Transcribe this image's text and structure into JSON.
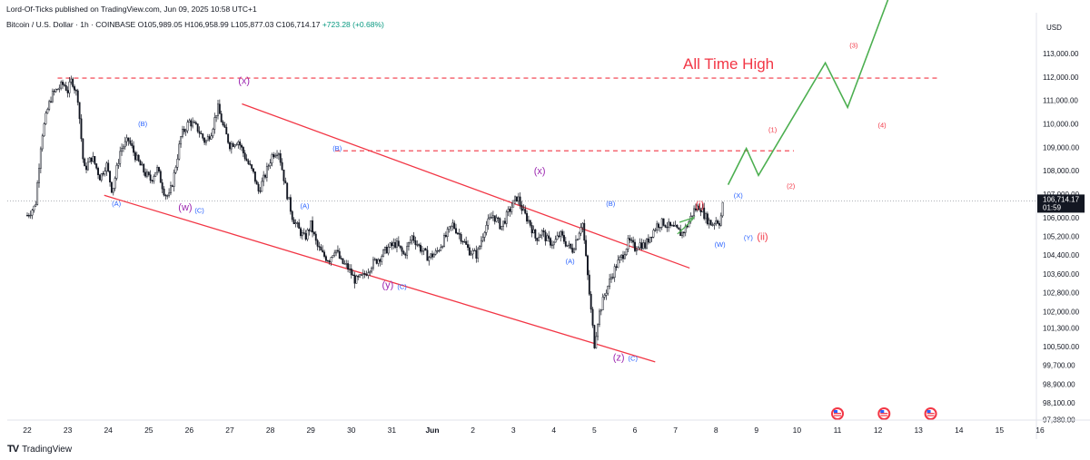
{
  "header": {
    "published": "Lord-Of-Ticks published on TradingView.com, Jun 09, 2025 10:58 UTC+1",
    "symbol_line": {
      "name": "Bitcoin / U.S. Dollar · 1h · COINBASE",
      "ohlc": "O105,989.05  H106,958.99  L105,877.03  C106,714.17",
      "change": "+723.28 (+0.68%)"
    }
  },
  "footer": {
    "brand": "TradingView"
  },
  "currency": "USD",
  "colors": {
    "candle": "#131722",
    "channel": "#f23645",
    "wave_purple": "#9c27b0",
    "wave_blue": "#2962ff",
    "wave_red": "#f23645",
    "projection": "#4caf50",
    "price_tag": "#131722",
    "event_icon": "#f23645"
  },
  "chart_data": {
    "type": "line",
    "title": "",
    "annotation_main": "All Time High",
    "xlabel": "",
    "ylabel": "",
    "ylim": [
      97000,
      114200
    ],
    "y_ticks": [
      97380,
      98100,
      98900,
      99700,
      100500,
      101300,
      102000,
      102800,
      103600,
      104400,
      105200,
      106000,
      107000,
      108000,
      109000,
      110000,
      111000,
      112000,
      113000
    ],
    "y_tick_labels": [
      "97,380.00",
      "98,100.00",
      "98,900.00",
      "99,700.00",
      "100,500.00",
      "101,300.00",
      "102,000.00",
      "102,800.00",
      "103,600.00",
      "104,400.00",
      "105,200.00",
      "106,000.00",
      "107,000.00",
      "108,000.00",
      "109,000.00",
      "110,000.00",
      "111,000.00",
      "112,000.00",
      "113,000.00"
    ],
    "x_ticks": [
      "22",
      "23",
      "24",
      "25",
      "26",
      "27",
      "28",
      "29",
      "30",
      "31",
      "Jun",
      "2",
      "3",
      "4",
      "5",
      "6",
      "7",
      "8",
      "9",
      "10",
      "11",
      "12",
      "13",
      "14",
      "15",
      "16"
    ],
    "current_price": {
      "value": 106714.17,
      "label": "106,714.17",
      "countdown": "01:59"
    },
    "price_path": [
      [
        0,
        106100
      ],
      [
        0.2,
        106500
      ],
      [
        0.35,
        109400
      ],
      [
        0.5,
        110600
      ],
      [
        0.6,
        111200
      ],
      [
        0.75,
        111500
      ],
      [
        0.9,
        111700
      ],
      [
        1.0,
        111400
      ],
      [
        1.1,
        111900
      ],
      [
        1.25,
        111100
      ],
      [
        1.4,
        108000
      ],
      [
        1.6,
        108600
      ],
      [
        1.8,
        107700
      ],
      [
        1.95,
        108300
      ],
      [
        2.1,
        107100
      ],
      [
        2.3,
        108900
      ],
      [
        2.5,
        109300
      ],
      [
        2.7,
        108500
      ],
      [
        2.9,
        107900
      ],
      [
        3.05,
        107600
      ],
      [
        3.2,
        108100
      ],
      [
        3.4,
        107000
      ],
      [
        3.5,
        106900
      ],
      [
        3.6,
        107600
      ],
      [
        3.8,
        109500
      ],
      [
        4.0,
        110100
      ],
      [
        4.2,
        109800
      ],
      [
        4.4,
        109200
      ],
      [
        4.55,
        109700
      ],
      [
        4.7,
        110700
      ],
      [
        4.85,
        109800
      ],
      [
        5.0,
        109100
      ],
      [
        5.2,
        109300
      ],
      [
        5.4,
        108500
      ],
      [
        5.6,
        107800
      ],
      [
        5.7,
        107100
      ],
      [
        5.85,
        107700
      ],
      [
        6.05,
        108700
      ],
      [
        6.2,
        108900
      ],
      [
        6.4,
        107100
      ],
      [
        6.55,
        106000
      ],
      [
        6.7,
        105500
      ],
      [
        6.85,
        105100
      ],
      [
        7.0,
        105700
      ],
      [
        7.15,
        104800
      ],
      [
        7.3,
        104400
      ],
      [
        7.45,
        104200
      ],
      [
        7.6,
        104700
      ],
      [
        7.75,
        104100
      ],
      [
        7.9,
        103900
      ],
      [
        8.1,
        103300
      ],
      [
        8.3,
        103500
      ],
      [
        8.5,
        104000
      ],
      [
        8.7,
        104300
      ],
      [
        8.9,
        104700
      ],
      [
        9.1,
        104900
      ],
      [
        9.3,
        104400
      ],
      [
        9.5,
        105200
      ],
      [
        9.7,
        104700
      ],
      [
        9.9,
        104300
      ],
      [
        10.1,
        104500
      ],
      [
        10.3,
        105100
      ],
      [
        10.5,
        105700
      ],
      [
        10.7,
        105200
      ],
      [
        10.9,
        104600
      ],
      [
        11.1,
        104400
      ],
      [
        11.3,
        105600
      ],
      [
        11.5,
        106100
      ],
      [
        11.7,
        105600
      ],
      [
        11.9,
        106300
      ],
      [
        12.1,
        106900
      ],
      [
        12.25,
        106200
      ],
      [
        12.4,
        105800
      ],
      [
        12.55,
        105100
      ],
      [
        12.7,
        105400
      ],
      [
        12.85,
        105000
      ],
      [
        13.0,
        104900
      ],
      [
        13.15,
        105300
      ],
      [
        13.3,
        104900
      ],
      [
        13.45,
        104600
      ],
      [
        13.6,
        105300
      ],
      [
        13.7,
        105900
      ],
      [
        13.8,
        104100
      ],
      [
        13.9,
        102300
      ],
      [
        14.0,
        100600
      ],
      [
        14.1,
        101800
      ],
      [
        14.25,
        102700
      ],
      [
        14.4,
        103400
      ],
      [
        14.55,
        104000
      ],
      [
        14.7,
        104400
      ],
      [
        14.85,
        105000
      ],
      [
        15.0,
        104700
      ],
      [
        15.1,
        104900
      ],
      [
        15.25,
        104800
      ],
      [
        15.4,
        105300
      ],
      [
        15.55,
        105700
      ],
      [
        15.7,
        105800
      ],
      [
        15.85,
        105600
      ],
      [
        16.0,
        105500
      ],
      [
        16.15,
        105300
      ],
      [
        16.3,
        105700
      ],
      [
        16.45,
        106300
      ],
      [
        16.6,
        106500
      ],
      [
        16.75,
        106000
      ],
      [
        16.9,
        105700
      ],
      [
        17.0,
        105900
      ],
      [
        17.1,
        105800
      ],
      [
        17.2,
        106900
      ]
    ],
    "horizontal_levels": [
      {
        "name": "All Time High",
        "value": 111950
      },
      {
        "name": "B high",
        "value": 108850
      }
    ],
    "channel_lines": [
      {
        "from": [
          5.3,
          110850
        ],
        "to": [
          16.35,
          103850
        ]
      },
      {
        "from": [
          1.9,
          106950
        ],
        "to": [
          15.5,
          99850
        ]
      }
    ],
    "projection_path": [
      [
        17.3,
        107400
      ],
      [
        17.75,
        108950
      ],
      [
        18.05,
        107800
      ],
      [
        19.7,
        112600
      ],
      [
        20.25,
        110700
      ],
      [
        21.4,
        116000
      ]
    ],
    "wave_labels": [
      {
        "text": "(x)",
        "x": 5.35,
        "y": 111700,
        "color": "wave_purple",
        "size": "l"
      },
      {
        "text": "(x)",
        "x": 12.65,
        "y": 107850,
        "color": "wave_purple",
        "size": "l"
      },
      {
        "text": "(w)",
        "x": 3.9,
        "y": 106300,
        "color": "wave_purple",
        "size": "l"
      },
      {
        "text": "(y)",
        "x": 8.9,
        "y": 103000,
        "color": "wave_purple",
        "size": "l"
      },
      {
        "text": "(z)",
        "x": 14.6,
        "y": 99900,
        "color": "wave_purple",
        "size": "l"
      },
      {
        "text": "(B)",
        "x": 2.85,
        "y": 109900,
        "color": "wave_blue",
        "size": "s"
      },
      {
        "text": "(A)",
        "x": 2.2,
        "y": 106500,
        "color": "wave_blue",
        "size": "s"
      },
      {
        "text": "(C)",
        "x": 4.25,
        "y": 106200,
        "color": "wave_blue",
        "size": "s"
      },
      {
        "text": "(B)",
        "x": 7.65,
        "y": 108850,
        "color": "wave_blue",
        "size": "s"
      },
      {
        "text": "(A)",
        "x": 6.85,
        "y": 106400,
        "color": "wave_blue",
        "size": "s"
      },
      {
        "text": "(C)",
        "x": 9.25,
        "y": 102950,
        "color": "wave_blue",
        "size": "s"
      },
      {
        "text": "(B)",
        "x": 14.4,
        "y": 106500,
        "color": "wave_blue",
        "size": "s"
      },
      {
        "text": "(A)",
        "x": 13.4,
        "y": 104050,
        "color": "wave_blue",
        "size": "s"
      },
      {
        "text": "(C)",
        "x": 14.95,
        "y": 99900,
        "color": "wave_blue",
        "size": "s"
      },
      {
        "text": "(X)",
        "x": 17.55,
        "y": 106850,
        "color": "wave_blue",
        "size": "s"
      },
      {
        "text": "(W)",
        "x": 17.1,
        "y": 104750,
        "color": "wave_blue",
        "size": "s"
      },
      {
        "text": "(Y)",
        "x": 17.8,
        "y": 105050,
        "color": "wave_blue",
        "size": "s"
      },
      {
        "text": "(i)",
        "x": 16.6,
        "y": 106400,
        "color": "wave_red",
        "size": "l"
      },
      {
        "text": "(ii)",
        "x": 18.15,
        "y": 105050,
        "color": "wave_red",
        "size": "l"
      },
      {
        "text": "(1)",
        "x": 18.4,
        "y": 109650,
        "color": "wave_red",
        "size": "s"
      },
      {
        "text": "(2)",
        "x": 18.85,
        "y": 107250,
        "color": "wave_red",
        "size": "s"
      },
      {
        "text": "(3)",
        "x": 20.4,
        "y": 113250,
        "color": "wave_red",
        "size": "s"
      },
      {
        "text": "(4)",
        "x": 21.1,
        "y": 109850,
        "color": "wave_red",
        "size": "s"
      }
    ],
    "event_icons": [
      20.0,
      21.15,
      22.3
    ]
  }
}
